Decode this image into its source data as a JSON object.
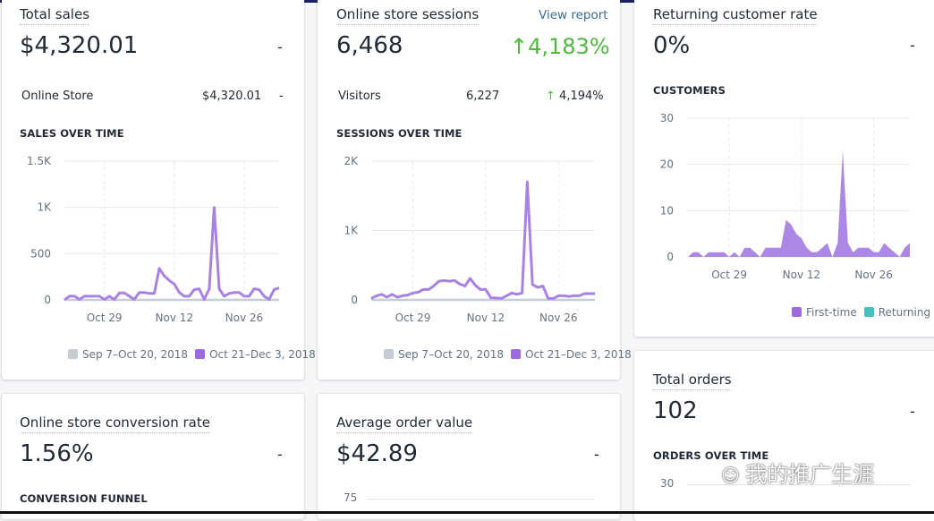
{
  "colors": {
    "current": "#9c6ade",
    "previous": "#c4cdd5",
    "returning": "#47c1bf",
    "positive": "#50b83c"
  },
  "total_sales": {
    "title": "Total sales",
    "value": "$4,320.01",
    "change": "-",
    "breakdown": {
      "label": "Online Store",
      "value": "$4,320.01",
      "change": "-"
    },
    "section": "SALES OVER TIME",
    "legend": [
      "Sep 7–Oct 20, 2018",
      "Oct 21–Dec 3, 2018"
    ]
  },
  "sessions": {
    "title": "Online store sessions",
    "link": "View report",
    "value": "6,468",
    "change": "4,183%",
    "change_icon": "arrow-up-icon",
    "breakdown": {
      "label": "Visitors",
      "value": "6,227",
      "change": "4,194%"
    },
    "section": "SESSIONS OVER TIME",
    "legend": [
      "Sep 7–Oct 20, 2018",
      "Oct 21–Dec 3, 2018"
    ]
  },
  "returning": {
    "title": "Returning customer rate",
    "value": "0%",
    "change": "-",
    "section": "CUSTOMERS",
    "legend": [
      "First-time",
      "Returning"
    ]
  },
  "conversion": {
    "title": "Online store conversion rate",
    "value": "1.56%",
    "change": "-",
    "section": "CONVERSION FUNNEL"
  },
  "aov": {
    "title": "Average order value",
    "value": "$42.89",
    "change": "-",
    "first_tick": "75"
  },
  "orders": {
    "title": "Total orders",
    "value": "102",
    "change": "-",
    "section": "ORDERS OVER TIME",
    "first_tick": "30"
  },
  "watermark": "我的推广生涯",
  "chart_data": [
    {
      "type": "line",
      "title": "SALES OVER TIME",
      "ylim": [
        0,
        1500
      ],
      "yticks": [
        "0",
        "500",
        "1K",
        "1.5K"
      ],
      "xticks": [
        "Oct 29",
        "Nov 12",
        "Nov 26"
      ],
      "x_start": "Oct 21",
      "x_end": "Dec 3",
      "grid": true,
      "legend": "bottom-right",
      "series": [
        {
          "name": "Sep 7–Oct 20, 2018",
          "values": [
            0,
            0,
            0,
            0,
            0,
            0,
            0,
            0,
            0,
            0,
            0,
            0,
            0,
            0,
            0,
            0,
            0,
            0,
            0,
            0,
            0,
            0,
            0,
            0,
            0,
            0,
            0,
            0,
            0,
            0,
            0,
            0,
            0,
            0,
            0,
            0,
            0,
            0,
            0,
            0,
            0,
            0,
            0,
            0
          ]
        },
        {
          "name": "Oct 21–Dec 3, 2018",
          "values": [
            0,
            40,
            40,
            5,
            40,
            40,
            40,
            40,
            5,
            40,
            5,
            75,
            75,
            40,
            5,
            80,
            80,
            70,
            70,
            340,
            260,
            210,
            170,
            80,
            40,
            40,
            110,
            120,
            5,
            120,
            1000,
            120,
            40,
            70,
            80,
            80,
            40,
            40,
            120,
            110,
            40,
            5,
            110,
            130
          ]
        }
      ]
    },
    {
      "type": "line",
      "title": "SESSIONS OVER TIME",
      "ylim": [
        0,
        2000
      ],
      "yticks": [
        "0",
        "1K",
        "2K"
      ],
      "xticks": [
        "Oct 29",
        "Nov 12",
        "Nov 26"
      ],
      "x_start": "Oct 21",
      "x_end": "Dec 3",
      "grid": true,
      "legend": "bottom-right",
      "series": [
        {
          "name": "Sep 7–Oct 20, 2018",
          "values": [
            0,
            0,
            0,
            0,
            0,
            0,
            0,
            0,
            0,
            0,
            0,
            0,
            0,
            0,
            0,
            0,
            0,
            0,
            0,
            0,
            0,
            0,
            0,
            0,
            0,
            0,
            0,
            0,
            0,
            0,
            0,
            0,
            0,
            0,
            0,
            0,
            0,
            0,
            0,
            0,
            0,
            0,
            0,
            0
          ]
        },
        {
          "name": "Oct 21–Dec 3, 2018",
          "values": [
            20,
            60,
            80,
            40,
            80,
            40,
            60,
            70,
            100,
            110,
            150,
            150,
            200,
            270,
            280,
            270,
            280,
            230,
            200,
            310,
            210,
            150,
            150,
            30,
            30,
            20,
            60,
            100,
            80,
            100,
            1700,
            220,
            180,
            200,
            20,
            20,
            60,
            60,
            50,
            60,
            60,
            90,
            90,
            90
          ]
        }
      ]
    },
    {
      "type": "area",
      "title": "CUSTOMERS",
      "ylim": [
        0,
        30
      ],
      "yticks": [
        "0",
        "10",
        "20",
        "30"
      ],
      "xticks": [
        "Oct 29",
        "Nov 12",
        "Nov 26"
      ],
      "x_start": "Oct 21",
      "x_end": "Dec 3",
      "grid": true,
      "legend": "bottom-right",
      "series": [
        {
          "name": "First-time",
          "values": [
            0,
            1,
            1,
            0,
            1,
            1,
            1,
            1,
            0,
            1,
            0,
            2,
            2,
            1,
            0,
            2,
            2,
            2,
            2,
            8,
            7,
            5,
            4,
            2,
            1,
            1,
            2,
            3,
            0,
            3,
            23,
            3,
            1,
            2,
            2,
            2,
            1,
            1,
            3,
            2,
            1,
            0,
            2,
            3
          ]
        },
        {
          "name": "Returning",
          "values": [
            0,
            0,
            0,
            0,
            0,
            0,
            0,
            0,
            0,
            0,
            0,
            0,
            0,
            0,
            0,
            0,
            0,
            0,
            0,
            0,
            0,
            0,
            0,
            0,
            0,
            0,
            0,
            0,
            0,
            0,
            0,
            0,
            0,
            0,
            0,
            0,
            0,
            0,
            0,
            0,
            0,
            0,
            0,
            0
          ]
        }
      ]
    }
  ]
}
